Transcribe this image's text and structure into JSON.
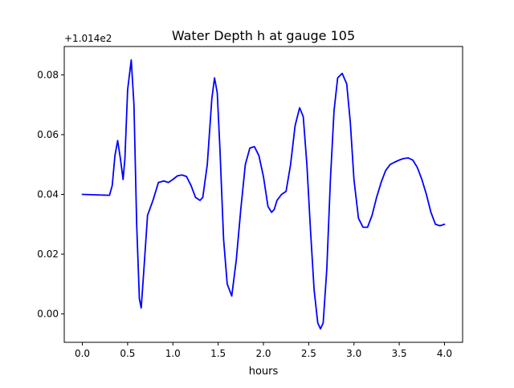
{
  "chart_data": {
    "type": "line",
    "title": "Water Depth h at gauge 105",
    "xlabel": "hours",
    "ylabel": "",
    "offset_label": "+1.014e2",
    "xlim": [
      -0.2,
      4.2
    ],
    "ylim": [
      -0.0095,
      0.0895
    ],
    "xticks": [
      0.0,
      0.5,
      1.0,
      1.5,
      2.0,
      2.5,
      3.0,
      3.5,
      4.0
    ],
    "xtick_labels": [
      "0.0",
      "0.5",
      "1.0",
      "1.5",
      "2.0",
      "2.5",
      "3.0",
      "3.5",
      "4.0"
    ],
    "yticks": [
      0.0,
      0.02,
      0.04,
      0.06,
      0.08
    ],
    "ytick_labels": [
      "0.00",
      "0.02",
      "0.04",
      "0.06",
      "0.08"
    ],
    "grid": false,
    "series": [
      {
        "color": "#0000ff",
        "x": [
          0.0,
          0.1,
          0.2,
          0.3,
          0.33,
          0.36,
          0.39,
          0.42,
          0.45,
          0.47,
          0.5,
          0.54,
          0.57,
          0.6,
          0.63,
          0.65,
          0.68,
          0.72,
          0.78,
          0.84,
          0.9,
          0.95,
          1.0,
          1.05,
          1.1,
          1.15,
          1.2,
          1.25,
          1.3,
          1.33,
          1.38,
          1.43,
          1.46,
          1.49,
          1.52,
          1.56,
          1.6,
          1.65,
          1.7,
          1.75,
          1.8,
          1.85,
          1.9,
          1.95,
          2.0,
          2.05,
          2.09,
          2.12,
          2.15,
          2.2,
          2.25,
          2.3,
          2.35,
          2.4,
          2.44,
          2.48,
          2.52,
          2.56,
          2.6,
          2.63,
          2.66,
          2.7,
          2.74,
          2.78,
          2.82,
          2.87,
          2.92,
          2.96,
          3.0,
          3.05,
          3.1,
          3.15,
          3.2,
          3.25,
          3.3,
          3.35,
          3.4,
          3.45,
          3.5,
          3.55,
          3.6,
          3.65,
          3.7,
          3.75,
          3.8,
          3.85,
          3.9,
          3.95,
          4.0
        ],
        "y": [
          0.04,
          0.0399,
          0.0398,
          0.0397,
          0.043,
          0.053,
          0.058,
          0.052,
          0.045,
          0.052,
          0.075,
          0.085,
          0.07,
          0.03,
          0.005,
          0.002,
          0.015,
          0.033,
          0.038,
          0.044,
          0.0445,
          0.044,
          0.045,
          0.0462,
          0.0465,
          0.046,
          0.043,
          0.039,
          0.038,
          0.039,
          0.05,
          0.072,
          0.079,
          0.074,
          0.055,
          0.025,
          0.01,
          0.006,
          0.018,
          0.035,
          0.05,
          0.0555,
          0.056,
          0.053,
          0.046,
          0.036,
          0.034,
          0.035,
          0.038,
          0.04,
          0.041,
          0.05,
          0.063,
          0.069,
          0.066,
          0.05,
          0.028,
          0.008,
          -0.003,
          -0.005,
          -0.003,
          0.015,
          0.045,
          0.068,
          0.079,
          0.0805,
          0.077,
          0.064,
          0.045,
          0.032,
          0.029,
          0.029,
          0.033,
          0.039,
          0.044,
          0.048,
          0.05,
          0.0508,
          0.0515,
          0.052,
          0.0522,
          0.0515,
          0.049,
          0.045,
          0.04,
          0.034,
          0.03,
          0.0295,
          0.03
        ]
      }
    ]
  }
}
